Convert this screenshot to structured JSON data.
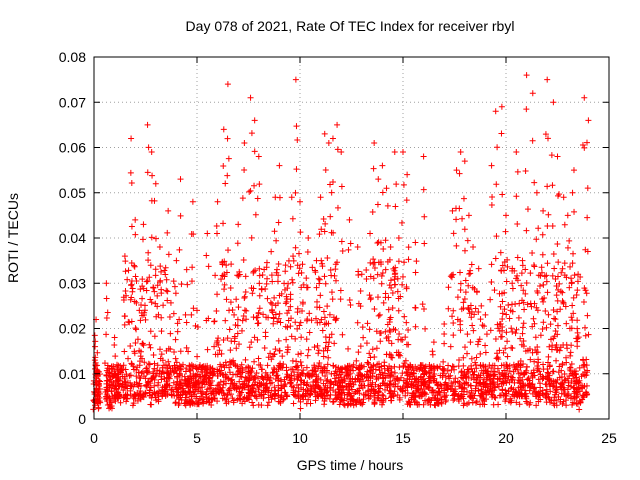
{
  "chart_data": {
    "type": "scatter",
    "title": "Day 078 of 2021, Rate Of TEC Index for receiver rbyl",
    "xlabel": "GPS time / hours",
    "ylabel": "ROTI / TECUs",
    "xlim": [
      0,
      25
    ],
    "ylim": [
      0,
      0.08
    ],
    "x_ticks": [
      "0",
      "5",
      "10",
      "15",
      "20",
      "25"
    ],
    "y_ticks": [
      "0",
      "0.01",
      "0.02",
      "0.03",
      "0.04",
      "0.05",
      "0.06",
      "0.07",
      "0.08"
    ],
    "grid": true,
    "series": [
      {
        "name": "ROTI",
        "color": "#ff0000",
        "marker": "plus",
        "x": [
          0.0,
          0.05,
          0.1,
          0.2,
          0.6,
          0.8,
          1.0,
          1.2,
          1.5,
          1.8,
          2.0,
          2.2,
          2.4,
          2.6,
          2.8,
          3.0,
          3.2,
          3.6,
          4.0,
          4.2,
          4.5,
          4.8,
          5.0,
          5.5,
          6.0,
          6.3,
          6.5,
          6.8,
          7.0,
          7.3,
          7.6,
          7.8,
          8.0,
          8.4,
          8.6,
          8.8,
          9.0,
          9.3,
          9.6,
          9.8,
          10.0,
          10.4,
          10.8,
          11.0,
          11.2,
          11.4,
          11.6,
          11.8,
          12.0,
          12.4,
          12.8,
          13.0,
          13.4,
          13.6,
          13.8,
          14.0,
          14.2,
          14.4,
          14.6,
          14.8,
          15.0,
          15.2,
          15.6,
          16.0,
          16.5,
          17.0,
          17.4,
          17.6,
          17.8,
          18.0,
          18.2,
          18.4,
          18.8,
          19.0,
          19.3,
          19.5,
          19.8,
          20.0,
          20.3,
          20.5,
          20.8,
          21.0,
          21.3,
          21.5,
          21.8,
          22.0,
          22.3,
          22.5,
          22.8,
          23.0,
          23.3,
          23.5,
          23.8,
          24.0
        ],
        "y": [
          0.006,
          0.016,
          0.022,
          0.005,
          0.03,
          0.004,
          0.018,
          0.01,
          0.036,
          0.062,
          0.044,
          0.024,
          0.043,
          0.065,
          0.059,
          0.052,
          0.038,
          0.046,
          0.035,
          0.053,
          0.033,
          0.048,
          0.024,
          0.041,
          0.048,
          0.064,
          0.074,
          0.023,
          0.043,
          0.061,
          0.071,
          0.066,
          0.058,
          0.031,
          0.037,
          0.049,
          0.056,
          0.034,
          0.049,
          0.075,
          0.048,
          0.04,
          0.035,
          0.049,
          0.063,
          0.061,
          0.062,
          0.065,
          0.059,
          0.044,
          0.038,
          0.032,
          0.041,
          0.061,
          0.053,
          0.056,
          0.051,
          0.038,
          0.059,
          0.04,
          0.059,
          0.054,
          0.039,
          0.058,
          0.017,
          0.021,
          0.046,
          0.055,
          0.059,
          0.057,
          0.045,
          0.038,
          0.025,
          0.023,
          0.056,
          0.068,
          0.069,
          0.045,
          0.03,
          0.059,
          0.035,
          0.076,
          0.072,
          0.05,
          0.046,
          0.075,
          0.07,
          0.058,
          0.049,
          0.045,
          0.055,
          0.032,
          0.071,
          0.066
        ],
        "baseline_range": [
          0.003,
          0.012
        ]
      }
    ]
  }
}
